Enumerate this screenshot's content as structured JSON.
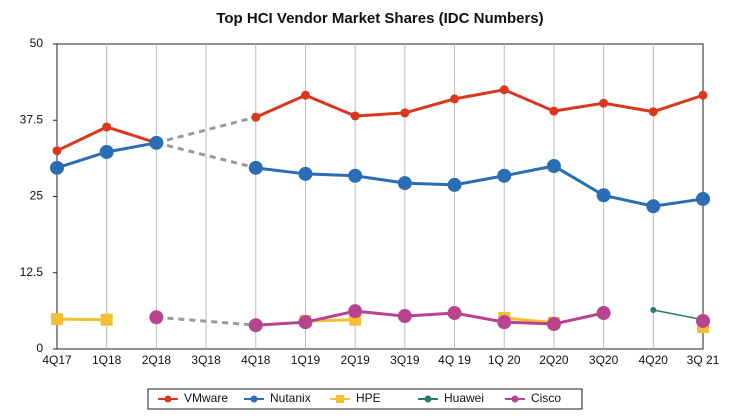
{
  "chart_data": {
    "type": "line",
    "title": "Top HCI Vendor Market Shares (IDC Numbers)",
    "categories": [
      "4Q17",
      "1Q18",
      "2Q18",
      "3Q18",
      "4Q18",
      "1Q19",
      "2Q19",
      "3Q19",
      "4Q 19",
      "1Q 20",
      "2Q20",
      "3Q20",
      "4Q20",
      "3Q 21"
    ],
    "series": [
      {
        "name": "VMware",
        "color": "#d9381e",
        "values": [
          32.5,
          36.4,
          33.8,
          null,
          38.0,
          41.6,
          38.2,
          38.7,
          41.0,
          42.5,
          39.0,
          40.3,
          38.9,
          41.6
        ]
      },
      {
        "name": "Nutanix",
        "color": "#2a6db5",
        "values": [
          29.7,
          32.3,
          33.8,
          null,
          29.7,
          28.7,
          28.4,
          27.2,
          26.9,
          28.4,
          30.0,
          25.2,
          23.4,
          24.6
        ]
      },
      {
        "name": "HPE",
        "color": "#f4c033",
        "values": [
          4.9,
          4.8,
          null,
          null,
          null,
          4.6,
          4.8,
          null,
          null,
          5.1,
          4.3,
          null,
          null,
          3.6
        ]
      },
      {
        "name": "Huawei",
        "color": "#2b7a6f",
        "values": [
          null,
          null,
          null,
          null,
          null,
          null,
          null,
          null,
          null,
          null,
          null,
          null,
          6.4,
          4.8
        ]
      },
      {
        "name": "Cisco",
        "color": "#b8448f",
        "values": [
          null,
          null,
          5.2,
          null,
          3.9,
          4.4,
          6.2,
          5.4,
          5.9,
          4.4,
          4.1,
          5.9,
          null,
          4.6
        ]
      }
    ],
    "ylim": [
      0,
      50
    ],
    "yticks": [
      0,
      12.5,
      25,
      37.5,
      50
    ],
    "grid": true,
    "legend": "bottom"
  }
}
